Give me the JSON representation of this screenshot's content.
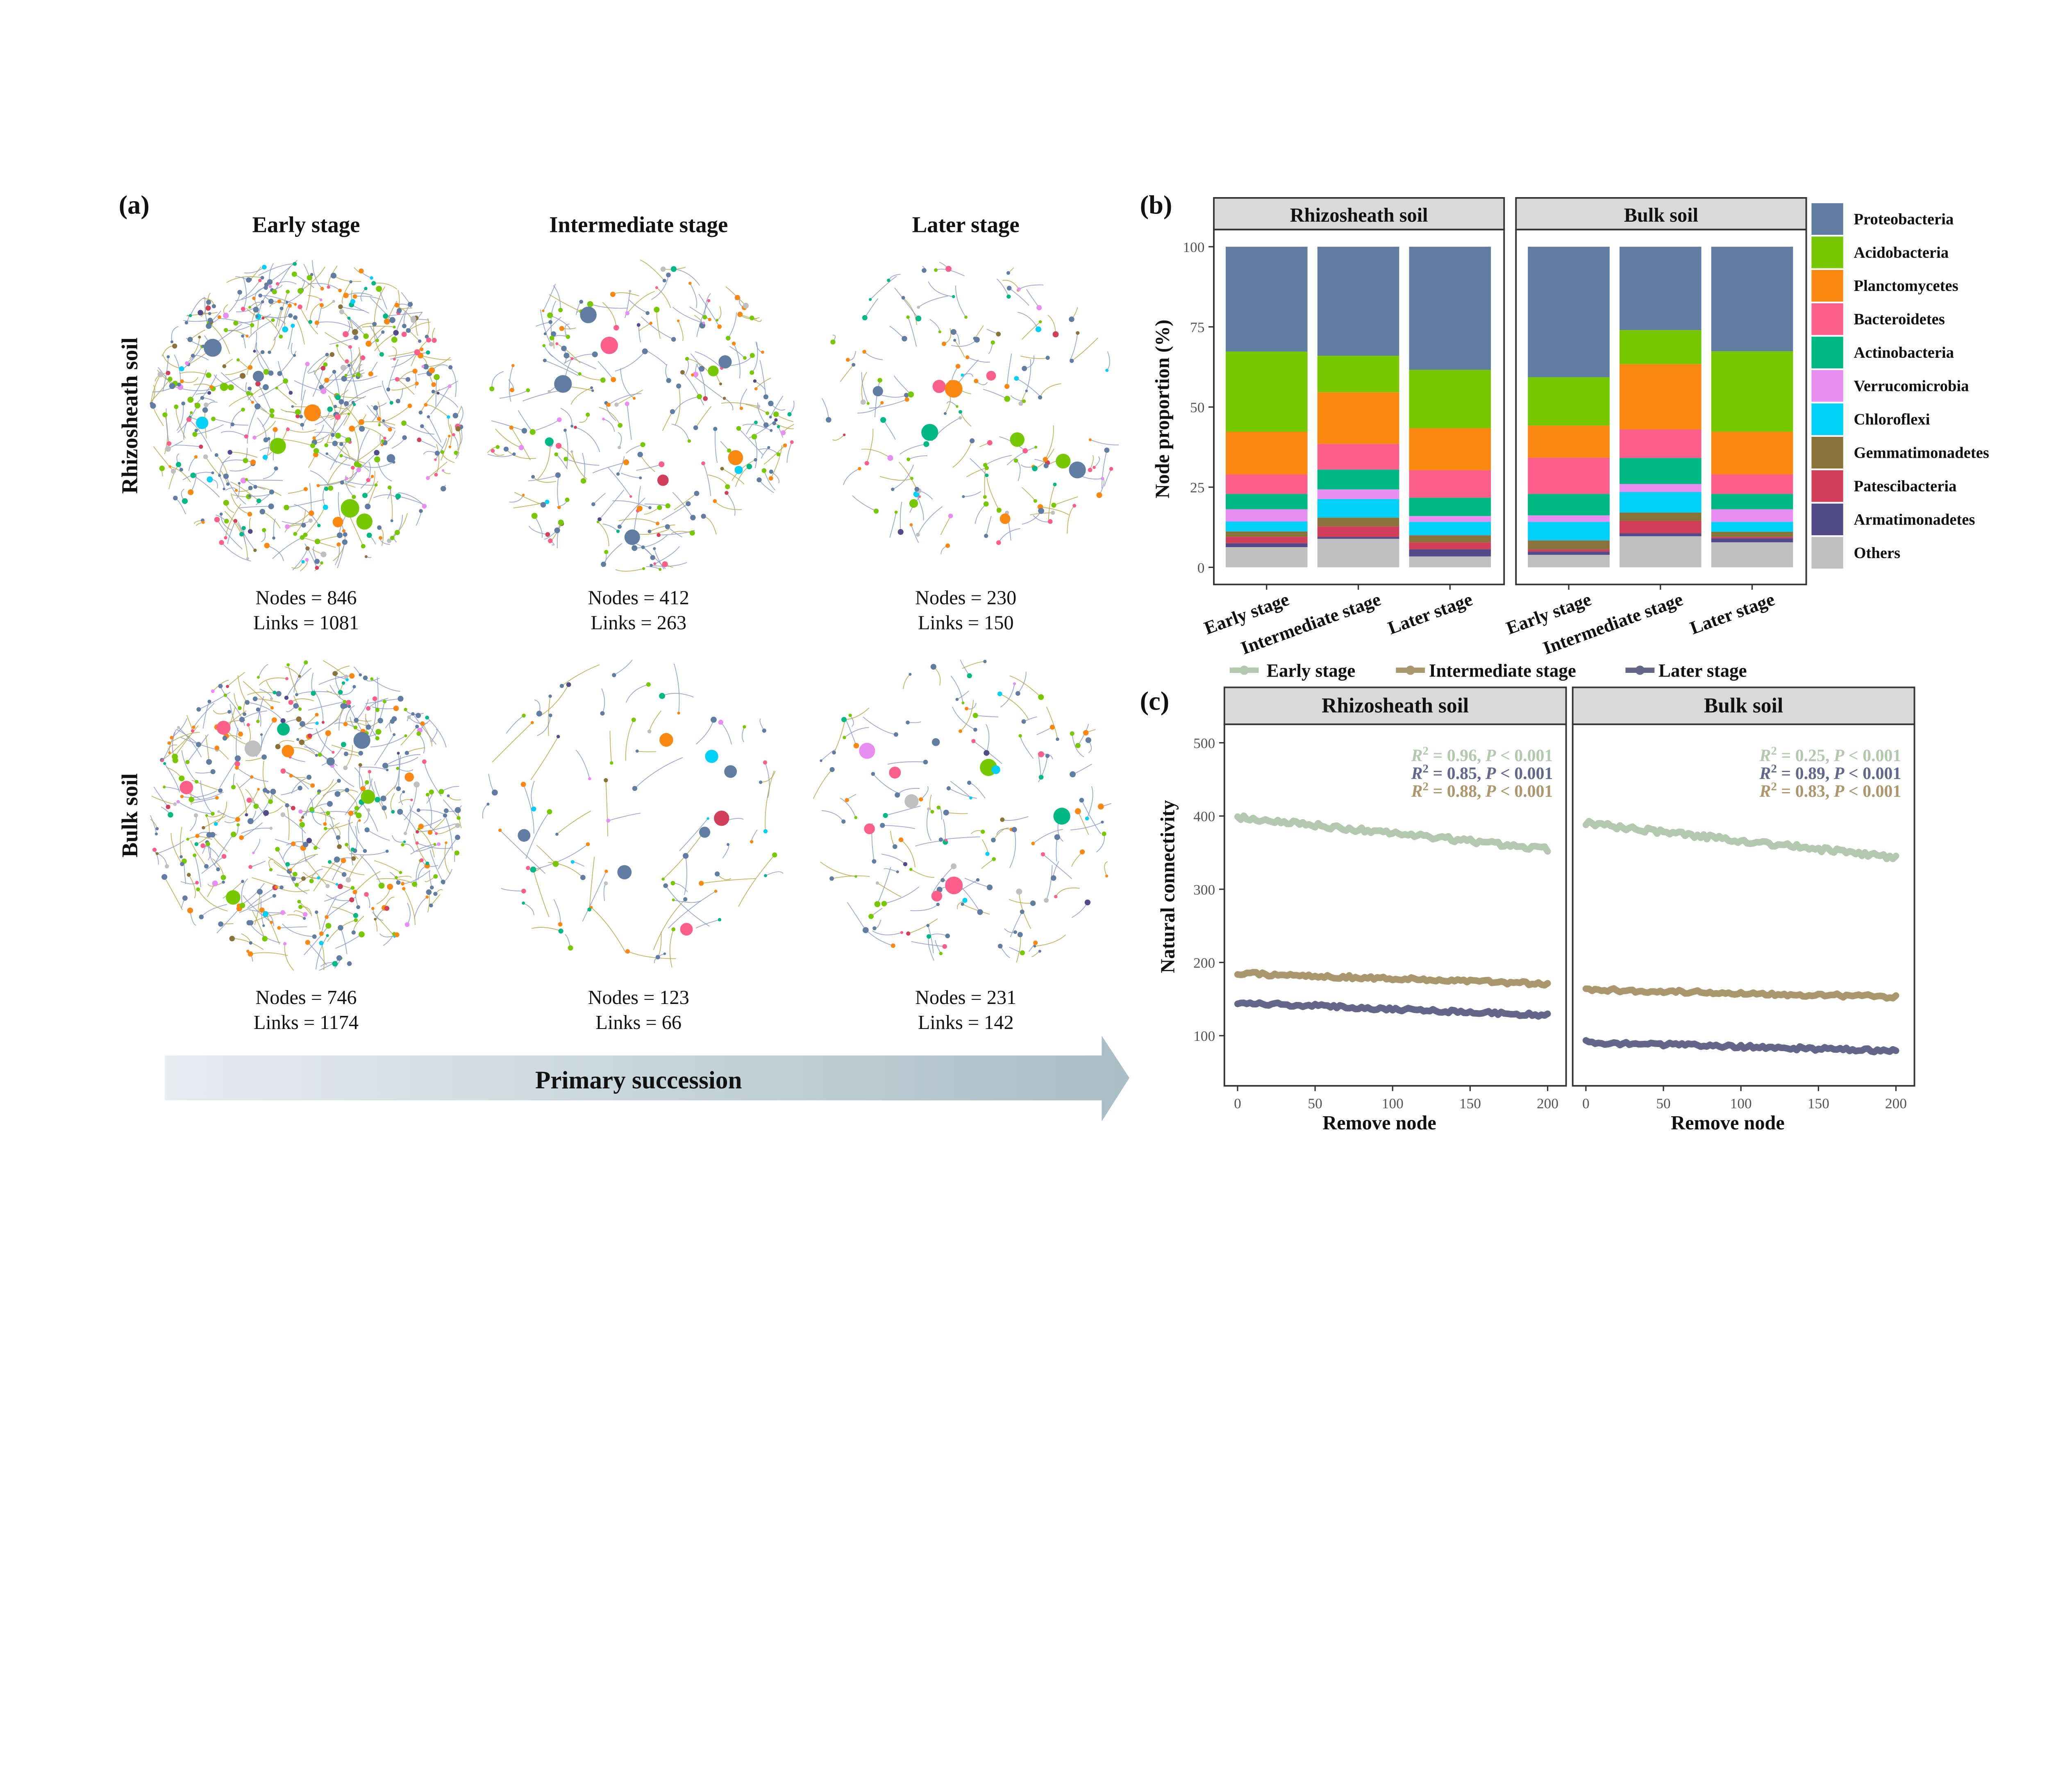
{
  "panel_a": {
    "label": "(a)",
    "columns": [
      "Early stage",
      "Intermediate stage",
      "Later stage"
    ],
    "rows": [
      "Rhizosheath soil",
      "Bulk soil"
    ],
    "networks": [
      {
        "row": "Rhizosheath soil",
        "stage": "Early stage",
        "nodes_text": "Nodes = 846",
        "links_text": "Links = 1081"
      },
      {
        "row": "Rhizosheath soil",
        "stage": "Intermediate stage",
        "nodes_text": "Nodes = 412",
        "links_text": "Links = 263"
      },
      {
        "row": "Rhizosheath soil",
        "stage": "Later stage",
        "nodes_text": "Nodes = 230",
        "links_text": "Links = 150"
      },
      {
        "row": "Bulk soil",
        "stage": "Early stage",
        "nodes_text": "Nodes = 746",
        "links_text": "Links = 1174"
      },
      {
        "row": "Bulk soil",
        "stage": "Intermediate stage",
        "nodes_text": "Nodes = 123",
        "links_text": "Links = 66"
      },
      {
        "row": "Bulk soil",
        "stage": "Later stage",
        "nodes_text": "Nodes = 231",
        "links_text": "Links = 142"
      }
    ],
    "arrow_label": "Primary succession",
    "arrow_colors": [
      "#e6ecef",
      "#a9bec6"
    ]
  },
  "chart_data": [
    {
      "type": "bar",
      "stacked": true,
      "label": "(b)",
      "ylabel": "Node proportion (%)",
      "ylim": [
        0,
        100
      ],
      "yticks": [
        "0",
        "25",
        "50",
        "75",
        "100"
      ],
      "facets": [
        "Rhizosheath soil",
        "Bulk soil"
      ],
      "categories": [
        "Early stage",
        "Intermediate stage",
        "Later stage"
      ],
      "legend_placement": "right",
      "series": [
        {
          "name": "Others",
          "color": "#bfbfbf",
          "values": [
            [
              6.3,
              8.9,
              3.4
            ],
            [
              3.9,
              9.7,
              7.8
            ]
          ]
        },
        {
          "name": "Armatimonadetes",
          "color": "#534a8a",
          "values": [
            [
              1.2,
              0.6,
              2.2
            ],
            [
              1.0,
              0.9,
              1.3
            ]
          ]
        },
        {
          "name": "Patescibacteria",
          "color": "#d23f5a",
          "values": [
            [
              2.0,
              3.3,
              2.2
            ],
            [
              0.7,
              3.9,
              0.4
            ]
          ]
        },
        {
          "name": "Gemmatimonadetes",
          "color": "#8a733a",
          "values": [
            [
              1.7,
              2.7,
              2.2
            ],
            [
              2.8,
              2.6,
              1.6
            ]
          ]
        },
        {
          "name": "Chloroflexi",
          "color": "#00d0f7",
          "values": [
            [
              3.1,
              5.8,
              4.2
            ],
            [
              5.8,
              6.4,
              3.1
            ]
          ]
        },
        {
          "name": "Verrucomicrobia",
          "color": "#e88ef2",
          "values": [
            [
              3.8,
              3.0,
              1.8
            ],
            [
              2.0,
              2.5,
              3.9
            ]
          ]
        },
        {
          "name": "Actinobacteria",
          "color": "#00b885",
          "values": [
            [
              4.8,
              6.2,
              5.7
            ],
            [
              6.7,
              8.1,
              4.8
            ]
          ]
        },
        {
          "name": "Bacteroidetes",
          "color": "#fd5f8a",
          "values": [
            [
              6.1,
              8.0,
              8.6
            ],
            [
              11.3,
              8.9,
              6.1
            ]
          ]
        },
        {
          "name": "Planctomycetes",
          "color": "#fc8814",
          "values": [
            [
              13.3,
              16.1,
              13.1
            ],
            [
              10.0,
              20.4,
              13.3
            ]
          ]
        },
        {
          "name": "Acidobacteria",
          "color": "#77c800",
          "values": [
            [
              25.0,
              11.4,
              18.2
            ],
            [
              15.1,
              10.6,
              25.1
            ]
          ]
        },
        {
          "name": "Proteobacteria",
          "color": "#627da2",
          "values": [
            [
              32.7,
              34.0,
              38.4
            ],
            [
              40.7,
              26.0,
              32.6
            ]
          ]
        }
      ]
    },
    {
      "type": "scatter",
      "label": "(c)",
      "xlabel": "Remove node",
      "ylabel": "Natural connectivity",
      "xlim": [
        0,
        200
      ],
      "ylim": [
        30,
        520
      ],
      "xticks": [
        "0",
        "50",
        "100",
        "150",
        "200"
      ],
      "yticks": [
        "100",
        "200",
        "300",
        "400",
        "500"
      ],
      "facets": [
        "Rhizosheath soil",
        "Bulk soil"
      ],
      "legend_placement": "top",
      "series": [
        {
          "name": "Early stage",
          "color": "#b3c8ae",
          "start": [
            398,
            390
          ],
          "end": [
            355,
            343
          ]
        },
        {
          "name": "Intermediate stage",
          "color": "#ab976d",
          "start": [
            185,
            163
          ],
          "end": [
            171,
            153
          ]
        },
        {
          "name": "Later stage",
          "color": "#646789",
          "start": [
            145,
            91
          ],
          "end": [
            128,
            79
          ]
        }
      ],
      "annotations": [
        [
          {
            "r2": "0.96",
            "p": "< 0.001",
            "color": "#b3c8ae"
          },
          {
            "r2": "0.85",
            "p": "< 0.001",
            "color": "#646789"
          },
          {
            "r2": "0.88",
            "p": "< 0.001",
            "color": "#ab976d"
          }
        ],
        [
          {
            "r2": "0.25",
            "p": "< 0.001",
            "color": "#b3c8ae"
          },
          {
            "r2": "0.89",
            "p": "< 0.001",
            "color": "#646789"
          },
          {
            "r2": "0.83",
            "p": "< 0.001",
            "color": "#ab976d"
          }
        ]
      ]
    }
  ]
}
